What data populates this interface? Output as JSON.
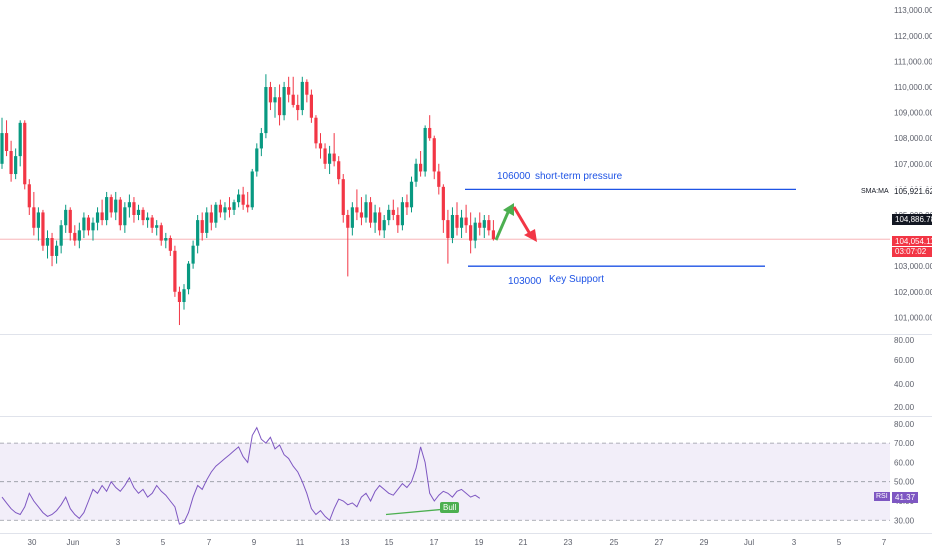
{
  "chart_data": [
    {
      "type": "candlestick",
      "x_ticks": [
        "30",
        "Jun",
        "3",
        "5",
        "7",
        "9",
        "11",
        "13",
        "15",
        "17",
        "19",
        "21",
        "23",
        "25",
        "27",
        "29",
        "Jul",
        "3",
        "5",
        "7"
      ],
      "y_ticks": [
        "113,000.00",
        "112,000.00",
        "111,000.00",
        "110,000.00",
        "109,000.00",
        "108,000.00",
        "107,000.00",
        "106,000.00",
        "105,000.00",
        "104,000.00",
        "103,000.00",
        "102,000.00",
        "101,000.00"
      ],
      "ylim": [
        100350,
        113400
      ],
      "series": [
        {
          "name": "",
          "ohlc": [
            [
              107000,
              108800,
              106800,
              108200
            ],
            [
              108200,
              108700,
              107300,
              107500
            ],
            [
              107500,
              107900,
              106300,
              106600
            ],
            [
              106600,
              107600,
              106400,
              107300
            ],
            [
              107300,
              108700,
              106900,
              108600
            ],
            [
              108600,
              108700,
              106000,
              106200
            ],
            [
              106200,
              106400,
              105000,
              105300
            ],
            [
              105300,
              105900,
              104200,
              104500
            ],
            [
              104500,
              105300,
              104000,
              105100
            ],
            [
              105100,
              105200,
              103600,
              103800
            ],
            [
              103800,
              104400,
              103300,
              104100
            ],
            [
              104100,
              104300,
              103000,
              103400
            ],
            [
              103400,
              104000,
              103100,
              103800
            ],
            [
              103800,
              104800,
              103500,
              104600
            ],
            [
              104600,
              105400,
              104300,
              105200
            ],
            [
              105200,
              105300,
              104000,
              104300
            ],
            [
              104300,
              104600,
              103800,
              104000
            ],
            [
              104000,
              104700,
              103700,
              104400
            ],
            [
              104400,
              105100,
              104100,
              104900
            ],
            [
              104900,
              105000,
              104200,
              104400
            ],
            [
              104400,
              104900,
              104000,
              104700
            ],
            [
              104700,
              105300,
              104400,
              105100
            ],
            [
              105100,
              105600,
              104600,
              104800
            ],
            [
              104800,
              105900,
              104600,
              105700
            ],
            [
              105700,
              105800,
              104900,
              105100
            ],
            [
              105100,
              105900,
              104800,
              105600
            ],
            [
              105600,
              105700,
              104400,
              104600
            ],
            [
              104600,
              105500,
              104300,
              105300
            ],
            [
              105300,
              105800,
              104900,
              105500
            ],
            [
              105500,
              105700,
              104700,
              105000
            ],
            [
              105000,
              105400,
              104800,
              105200
            ],
            [
              105200,
              105300,
              104600,
              104800
            ],
            [
              104800,
              105100,
              104500,
              104900
            ],
            [
              104900,
              105000,
              104300,
              104500
            ],
            [
              104500,
              104800,
              104200,
              104600
            ],
            [
              104600,
              104700,
              103800,
              104000
            ],
            [
              104000,
              104300,
              103700,
              104100
            ],
            [
              104100,
              104200,
              103400,
              103600
            ],
            [
              103600,
              103800,
              101800,
              102000
            ],
            [
              102000,
              102200,
              100700,
              101600
            ],
            [
              101600,
              102300,
              101300,
              102100
            ],
            [
              102100,
              103200,
              101900,
              103100
            ],
            [
              103100,
              104000,
              102900,
              103800
            ],
            [
              103800,
              105000,
              103500,
              104800
            ],
            [
              104800,
              105100,
              104000,
              104300
            ],
            [
              104300,
              105300,
              104100,
              105100
            ],
            [
              105100,
              105400,
              104400,
              104700
            ],
            [
              104700,
              105500,
              104500,
              105400
            ],
            [
              105400,
              105600,
              104900,
              105100
            ],
            [
              105100,
              105500,
              104800,
              105300
            ],
            [
              105300,
              105700,
              104900,
              105200
            ],
            [
              105200,
              105600,
              105000,
              105500
            ],
            [
              105500,
              106000,
              105300,
              105800
            ],
            [
              105800,
              106100,
              105200,
              105400
            ],
            [
              105400,
              105900,
              105100,
              105300
            ],
            [
              105300,
              106800,
              105200,
              106700
            ],
            [
              106700,
              107800,
              106500,
              107600
            ],
            [
              107600,
              108400,
              107300,
              108200
            ],
            [
              108200,
              110500,
              108000,
              110000
            ],
            [
              110000,
              110200,
              109100,
              109400
            ],
            [
              109400,
              110000,
              108800,
              109600
            ],
            [
              109600,
              110100,
              108500,
              108900
            ],
            [
              108900,
              110200,
              108700,
              110000
            ],
            [
              110000,
              110400,
              109400,
              109700
            ],
            [
              109700,
              110400,
              109200,
              109300
            ],
            [
              109300,
              109700,
              108700,
              109100
            ],
            [
              109100,
              110400,
              108900,
              110200
            ],
            [
              110200,
              110300,
              109400,
              109700
            ],
            [
              109700,
              109900,
              108600,
              108800
            ],
            [
              108800,
              108900,
              107600,
              107800
            ],
            [
              107800,
              108200,
              107200,
              107600
            ],
            [
              107600,
              107800,
              106800,
              107000
            ],
            [
              107000,
              107700,
              106600,
              107400
            ],
            [
              107400,
              108200,
              106900,
              107100
            ],
            [
              107100,
              107300,
              106200,
              106400
            ],
            [
              106400,
              106600,
              104700,
              105000
            ],
            [
              105000,
              105200,
              102600,
              104500
            ],
            [
              104500,
              105500,
              104200,
              105300
            ],
            [
              105300,
              106000,
              104800,
              105100
            ],
            [
              105100,
              105700,
              104600,
              104900
            ],
            [
              104900,
              105800,
              104700,
              105500
            ],
            [
              105500,
              105700,
              104500,
              104700
            ],
            [
              104700,
              105400,
              104300,
              105100
            ],
            [
              105100,
              105300,
              104200,
              104400
            ],
            [
              104400,
              105000,
              104100,
              104800
            ],
            [
              104800,
              105400,
              104600,
              105200
            ],
            [
              105200,
              105600,
              104800,
              105000
            ],
            [
              105000,
              105300,
              104300,
              104600
            ],
            [
              104600,
              105700,
              104400,
              105500
            ],
            [
              105500,
              105800,
              105000,
              105300
            ],
            [
              105300,
              106500,
              105100,
              106300
            ],
            [
              106300,
              107200,
              106100,
              107000
            ],
            [
              107000,
              107500,
              106500,
              106700
            ],
            [
              106700,
              108500,
              106500,
              108400
            ],
            [
              108400,
              108900,
              107900,
              108000
            ],
            [
              108000,
              108100,
              106400,
              106700
            ],
            [
              106700,
              107000,
              105800,
              106100
            ],
            [
              106100,
              106200,
              104300,
              104800
            ],
            [
              104800,
              105200,
              103100,
              104100
            ],
            [
              104100,
              105300,
              103900,
              105000
            ],
            [
              105000,
              105500,
              104200,
              104500
            ],
            [
              104500,
              105200,
              104100,
              104900
            ],
            [
              104900,
              105400,
              104300,
              104600
            ],
            [
              104600,
              105100,
              103500,
              104000
            ],
            [
              104000,
              104900,
              103700,
              104700
            ],
            [
              104700,
              105100,
              104200,
              104500
            ],
            [
              104500,
              105000,
              104100,
              104800
            ],
            [
              104800,
              105000,
              104200,
              104400
            ],
            [
              104400,
              104800,
              104000,
              104054
            ]
          ]
        }
      ],
      "annotations": [
        {
          "price": 106000,
          "label": "106000",
          "text": "short-term pressure"
        },
        {
          "price": 103000,
          "label": "103000",
          "text": "Key Support"
        }
      ],
      "price_tags": {
        "sma_label": "SMA:MA",
        "sma_value": "105,921.62",
        "sma_color": "#ffffff",
        "ma_tag": "104,886.78",
        "ma_tag_color": "#131722",
        "last_price": "104,054.11",
        "countdown": "03:07:02",
        "last_color": "#f23645"
      },
      "colors": {
        "up": "#089981",
        "down": "#f23645",
        "line": "#1e53e5",
        "arrow_up": "#4caf50",
        "arrow_down": "#f23645"
      }
    },
    {
      "type": "line",
      "title": "RSI",
      "y_ticks": [
        "80.00",
        "70.00",
        "60.00",
        "50.00",
        "40.00",
        "30.00"
      ],
      "ylim": [
        26,
        83
      ],
      "band": [
        30,
        70
      ],
      "values": [
        42,
        39,
        36,
        34,
        33,
        37,
        44,
        40,
        37,
        34,
        32,
        33,
        35,
        38,
        42,
        36,
        33,
        31,
        34,
        40,
        46,
        44,
        48,
        45,
        50,
        47,
        45,
        48,
        52,
        47,
        44,
        46,
        42,
        44,
        48,
        45,
        43,
        40,
        37,
        28,
        29,
        34,
        42,
        48,
        46,
        51,
        55,
        58,
        60,
        62,
        64,
        66,
        68,
        63,
        60,
        74,
        78,
        72,
        70,
        73,
        67,
        69,
        64,
        62,
        58,
        55,
        50,
        44,
        36,
        33,
        35,
        32,
        30,
        36,
        41,
        40,
        38,
        39,
        37,
        42,
        44,
        40,
        45,
        48,
        46,
        44,
        43,
        46,
        49,
        47,
        50,
        57,
        68,
        60,
        44,
        40,
        43,
        45,
        44,
        42,
        45,
        46,
        44,
        42,
        43,
        41.37
      ],
      "current": "41.37",
      "current_color": "#7e57c2",
      "divergence_label": "Bull",
      "divergence_color": "#4caf50",
      "line_color": "#7e57c2"
    }
  ]
}
